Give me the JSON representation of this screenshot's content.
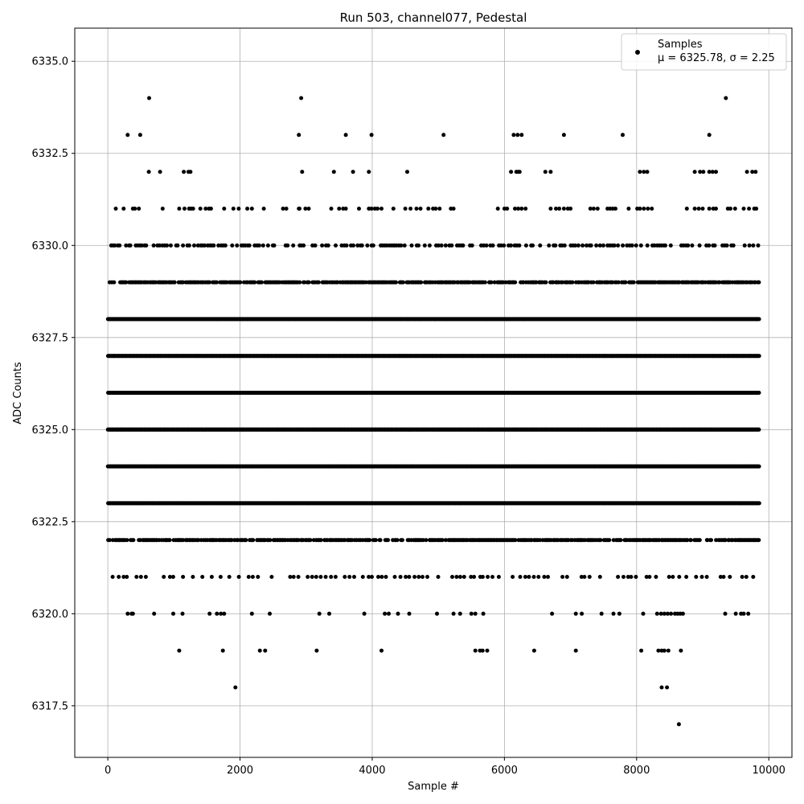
{
  "chart_data": {
    "type": "scatter",
    "title": "Run 503, channel077, Pedestal",
    "xlabel": "Sample #",
    "ylabel": "ADC Counts",
    "xlim": [
      -500,
      10350
    ],
    "ylim": [
      6316.1,
      6335.9
    ],
    "xticks": [
      0,
      2000,
      4000,
      6000,
      8000,
      10000
    ],
    "xtick_labels": [
      "0",
      "2000",
      "4000",
      "6000",
      "8000",
      "10000"
    ],
    "yticks": [
      6317.5,
      6320.0,
      6322.5,
      6325.0,
      6327.5,
      6330.0,
      6332.5,
      6335.0
    ],
    "ytick_labels": [
      "6317.5",
      "6320.0",
      "6322.5",
      "6325.0",
      "6327.5",
      "6330.0",
      "6332.5",
      "6335.0"
    ],
    "grid": true,
    "legend_position": "top-right",
    "legend": {
      "name": "Samples",
      "stats": "μ = 6325.78, σ = 2.25"
    },
    "series": [
      {
        "name": "Samples",
        "color": "#000000",
        "n_samples": 10000,
        "x_range": [
          0,
          9850
        ],
        "dense_levels": [
          6322,
          6323,
          6324,
          6325,
          6326,
          6327,
          6328,
          6329
        ],
        "sparse_points": [
          [
            625,
            6334
          ],
          [
            2925,
            6334
          ],
          [
            9350,
            6334
          ],
          [
            300,
            6333
          ],
          [
            490,
            6333
          ],
          [
            2890,
            6333
          ],
          [
            3600,
            6333
          ],
          [
            3990,
            6333
          ],
          [
            5080,
            6333
          ],
          [
            6140,
            6333
          ],
          [
            6200,
            6333
          ],
          [
            6260,
            6333
          ],
          [
            6900,
            6333
          ],
          [
            7790,
            6333
          ],
          [
            9100,
            6333
          ],
          [
            620,
            6332
          ],
          [
            790,
            6332
          ],
          [
            1150,
            6332
          ],
          [
            1220,
            6332
          ],
          [
            1250,
            6332
          ],
          [
            2940,
            6332
          ],
          [
            3420,
            6332
          ],
          [
            3710,
            6332
          ],
          [
            3950,
            6332
          ],
          [
            4530,
            6332
          ],
          [
            6100,
            6332
          ],
          [
            6180,
            6332
          ],
          [
            6210,
            6332
          ],
          [
            6230,
            6332
          ],
          [
            6620,
            6332
          ],
          [
            6700,
            6332
          ],
          [
            8050,
            6332
          ],
          [
            8110,
            6332
          ],
          [
            8160,
            6332
          ],
          [
            8880,
            6332
          ],
          [
            8960,
            6332
          ],
          [
            9010,
            6332
          ],
          [
            9100,
            6332
          ],
          [
            9150,
            6332
          ],
          [
            9200,
            6332
          ],
          [
            9670,
            6332
          ],
          [
            9750,
            6332
          ],
          [
            9800,
            6332
          ],
          [
            120,
            6331
          ],
          [
            240,
            6331
          ],
          [
            380,
            6331
          ],
          [
            410,
            6331
          ],
          [
            470,
            6331
          ],
          [
            830,
            6331
          ],
          [
            1080,
            6331
          ],
          [
            1160,
            6331
          ],
          [
            1230,
            6331
          ],
          [
            1260,
            6331
          ],
          [
            1290,
            6331
          ],
          [
            1400,
            6331
          ],
          [
            1480,
            6331
          ],
          [
            1530,
            6331
          ],
          [
            1560,
            6331
          ],
          [
            1760,
            6331
          ],
          [
            1900,
            6331
          ],
          [
            1980,
            6331
          ],
          [
            2110,
            6331
          ],
          [
            2180,
            6331
          ],
          [
            2360,
            6331
          ],
          [
            2650,
            6331
          ],
          [
            2700,
            6331
          ],
          [
            2890,
            6331
          ],
          [
            2900,
            6331
          ],
          [
            2990,
            6331
          ],
          [
            3040,
            6331
          ],
          [
            3380,
            6331
          ],
          [
            3500,
            6331
          ],
          [
            3560,
            6331
          ],
          [
            3600,
            6331
          ],
          [
            3800,
            6331
          ],
          [
            3950,
            6331
          ],
          [
            3990,
            6331
          ],
          [
            4040,
            6331
          ],
          [
            4080,
            6331
          ],
          [
            4140,
            6331
          ],
          [
            4320,
            6331
          ],
          [
            4500,
            6331
          ],
          [
            4580,
            6331
          ],
          [
            4670,
            6331
          ],
          [
            4730,
            6331
          ],
          [
            4850,
            6331
          ],
          [
            4920,
            6331
          ],
          [
            4960,
            6331
          ],
          [
            5020,
            6331
          ],
          [
            5190,
            6331
          ],
          [
            5230,
            6331
          ],
          [
            5900,
            6331
          ],
          [
            6000,
            6331
          ],
          [
            6040,
            6331
          ],
          [
            6160,
            6331
          ],
          [
            6210,
            6331
          ],
          [
            6260,
            6331
          ],
          [
            6320,
            6331
          ],
          [
            6700,
            6331
          ],
          [
            6780,
            6331
          ],
          [
            6830,
            6331
          ],
          [
            6900,
            6331
          ],
          [
            6960,
            6331
          ],
          [
            7000,
            6331
          ],
          [
            7300,
            6331
          ],
          [
            7350,
            6331
          ],
          [
            7410,
            6331
          ],
          [
            7560,
            6331
          ],
          [
            7600,
            6331
          ],
          [
            7640,
            6331
          ],
          [
            7680,
            6331
          ],
          [
            7880,
            6331
          ],
          [
            8010,
            6331
          ],
          [
            8050,
            6331
          ],
          [
            8110,
            6331
          ],
          [
            8170,
            6331
          ],
          [
            8230,
            6331
          ],
          [
            8760,
            6331
          ],
          [
            8880,
            6331
          ],
          [
            8940,
            6331
          ],
          [
            9000,
            6331
          ],
          [
            9100,
            6331
          ],
          [
            9160,
            6331
          ],
          [
            9200,
            6331
          ],
          [
            9380,
            6331
          ],
          [
            9420,
            6331
          ],
          [
            9490,
            6331
          ],
          [
            9620,
            6331
          ],
          [
            9700,
            6331
          ],
          [
            9780,
            6331
          ],
          [
            9810,
            6331
          ],
          [
            300,
            6320
          ],
          [
            360,
            6320
          ],
          [
            380,
            6320
          ],
          [
            700,
            6320
          ],
          [
            990,
            6320
          ],
          [
            1130,
            6320
          ],
          [
            1540,
            6320
          ],
          [
            1650,
            6320
          ],
          [
            1710,
            6320
          ],
          [
            1760,
            6320
          ],
          [
            2180,
            6320
          ],
          [
            2450,
            6320
          ],
          [
            3200,
            6320
          ],
          [
            3350,
            6320
          ],
          [
            3880,
            6320
          ],
          [
            4190,
            6320
          ],
          [
            4250,
            6320
          ],
          [
            4390,
            6320
          ],
          [
            4560,
            6320
          ],
          [
            4980,
            6320
          ],
          [
            5230,
            6320
          ],
          [
            5330,
            6320
          ],
          [
            5500,
            6320
          ],
          [
            5560,
            6320
          ],
          [
            5680,
            6320
          ],
          [
            6720,
            6320
          ],
          [
            7080,
            6320
          ],
          [
            7170,
            6320
          ],
          [
            7470,
            6320
          ],
          [
            7650,
            6320
          ],
          [
            7740,
            6320
          ],
          [
            8100,
            6320
          ],
          [
            8310,
            6320
          ],
          [
            8370,
            6320
          ],
          [
            8420,
            6320
          ],
          [
            8470,
            6320
          ],
          [
            8520,
            6320
          ],
          [
            8580,
            6320
          ],
          [
            8620,
            6320
          ],
          [
            8660,
            6320
          ],
          [
            8700,
            6320
          ],
          [
            9340,
            6320
          ],
          [
            9500,
            6320
          ],
          [
            9580,
            6320
          ],
          [
            9620,
            6320
          ],
          [
            9690,
            6320
          ],
          [
            1080,
            6319
          ],
          [
            1740,
            6319
          ],
          [
            2300,
            6319
          ],
          [
            2380,
            6319
          ],
          [
            3160,
            6319
          ],
          [
            4140,
            6319
          ],
          [
            5560,
            6319
          ],
          [
            5630,
            6319
          ],
          [
            5670,
            6319
          ],
          [
            5740,
            6319
          ],
          [
            6450,
            6319
          ],
          [
            7080,
            6319
          ],
          [
            8070,
            6319
          ],
          [
            8330,
            6319
          ],
          [
            8380,
            6319
          ],
          [
            8420,
            6319
          ],
          [
            8480,
            6319
          ],
          [
            8670,
            6319
          ],
          [
            1930,
            6318
          ],
          [
            8380,
            6318
          ],
          [
            8460,
            6318
          ],
          [
            8640,
            6317
          ]
        ]
      }
    ]
  }
}
